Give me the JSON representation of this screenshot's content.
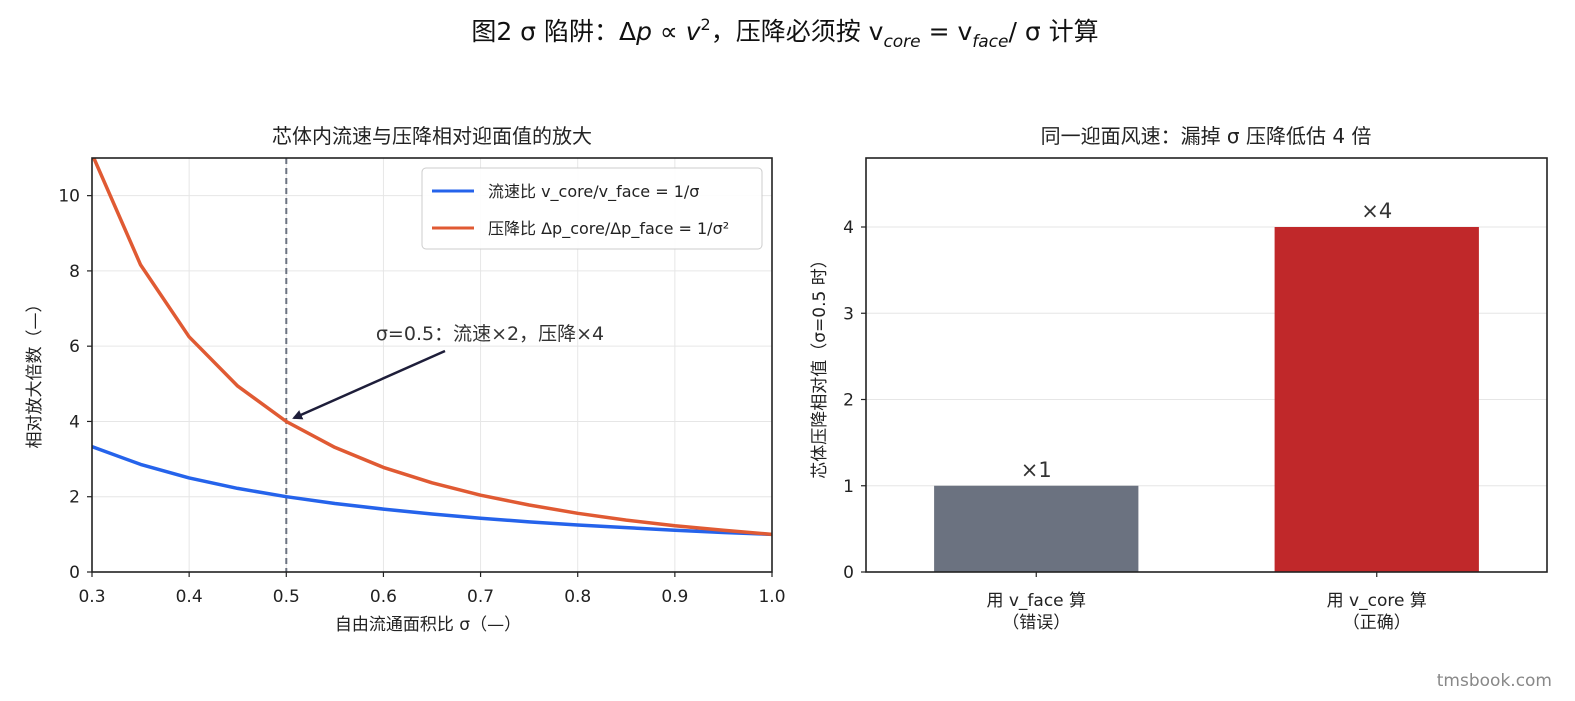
{
  "figure": {
    "suptitle": "图2  σ 陷阱：Δp ∝ v², 压降必须按 v_core = v_face / σ 计算",
    "footer": "tmsbook.com"
  },
  "chart_data": [
    {
      "type": "line",
      "title": "芯体内流速与压降相对迎面值的放大",
      "xlabel": "自由流通面积比  σ（—）",
      "ylabel": "相对放大倍数（—）",
      "xlim": [
        0.3,
        1.0
      ],
      "ylim": [
        0,
        11
      ],
      "xticks": [
        "0.3",
        "0.4",
        "0.5",
        "0.6",
        "0.7",
        "0.8",
        "0.9",
        "1.0"
      ],
      "yticks": [
        "0",
        "2",
        "4",
        "6",
        "8",
        "10"
      ],
      "grid": true,
      "legend_position": "top-right",
      "x": [
        0.3,
        0.35,
        0.4,
        0.45,
        0.5,
        0.55,
        0.6,
        0.65,
        0.7,
        0.75,
        0.8,
        0.85,
        0.9,
        0.95,
        1.0
      ],
      "series": [
        {
          "name": "流速比 v_core/v_face = 1/σ",
          "color": "#2563eb",
          "values": [
            3.33,
            2.86,
            2.5,
            2.22,
            2.0,
            1.82,
            1.67,
            1.54,
            1.43,
            1.33,
            1.25,
            1.18,
            1.11,
            1.05,
            1.0
          ]
        },
        {
          "name": "压降比 Δp_core/Δp_face = 1/σ²",
          "color": "#e05a33",
          "values": [
            11.11,
            8.16,
            6.25,
            4.94,
            4.0,
            3.31,
            2.78,
            2.37,
            2.04,
            1.78,
            1.56,
            1.38,
            1.23,
            1.11,
            1.0
          ]
        }
      ],
      "vline": {
        "x": 0.5,
        "color": "#6b7280"
      },
      "annotation": {
        "text": "σ=0.5：流速×2，压降×4",
        "point_x": 0.5,
        "point_y": 4.0
      }
    },
    {
      "type": "bar",
      "title": "同一迎面风速：漏掉 σ 压降低估 4 倍",
      "ylabel": "芯体压降相对值（σ=0.5 时）",
      "categories": [
        "用 v_face 算\n（错误）",
        "用 v_core 算\n（正确）"
      ],
      "values": [
        1,
        4
      ],
      "data_labels": [
        "×1",
        "×4"
      ],
      "colors": [
        "#6b7280",
        "#c0282a"
      ],
      "ylim": [
        0,
        4.8
      ],
      "yticks": [
        "0",
        "1",
        "2",
        "3",
        "4"
      ],
      "grid": true
    }
  ]
}
